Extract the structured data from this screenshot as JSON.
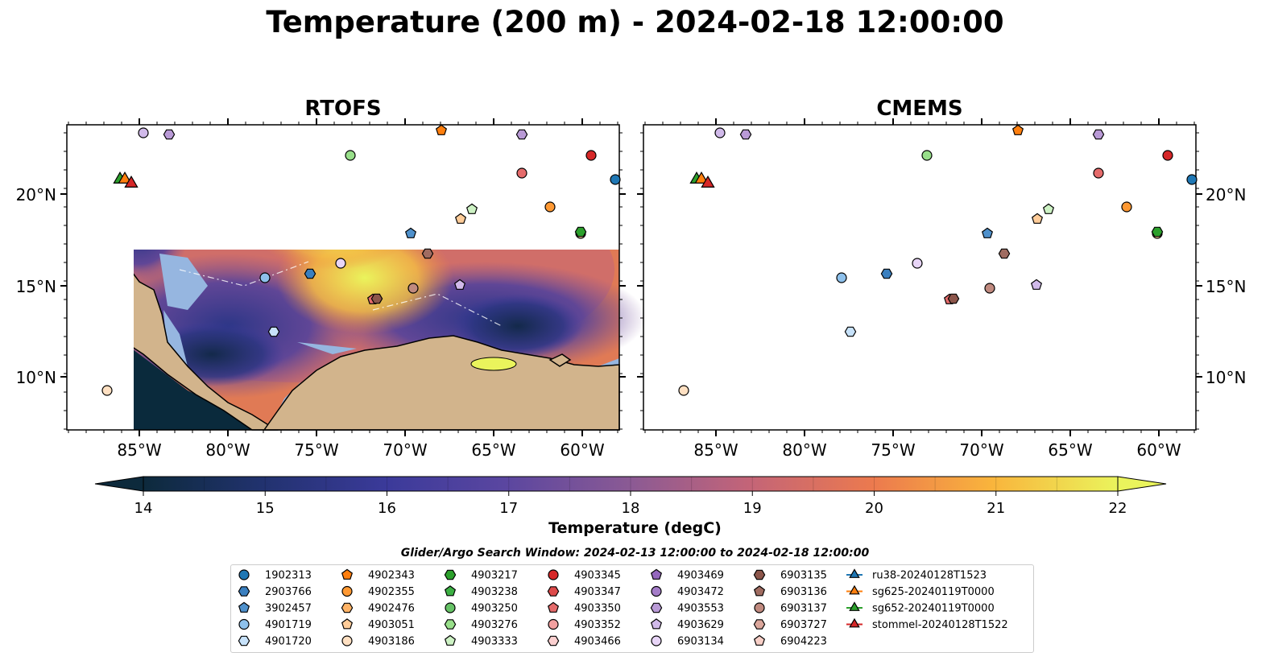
{
  "title": "Temperature (200 m) - 2024-02-18 12:00:00",
  "panels": [
    {
      "title": "RTOFS"
    },
    {
      "title": "CMEMS"
    }
  ],
  "axes": {
    "lon_ticks": [
      "85°W",
      "80°W",
      "75°W",
      "70°W",
      "65°W",
      "60°W"
    ],
    "lat_ticks": [
      "20°N",
      "15°N",
      "10°N"
    ]
  },
  "colorbar": {
    "label": "Temperature (degC)",
    "ticks": [
      "14",
      "15",
      "16",
      "17",
      "18",
      "19",
      "20",
      "21",
      "22"
    ],
    "range": [
      14,
      22
    ],
    "step": 0.5,
    "extend": "both",
    "colormap": "thermal"
  },
  "search_window": "Glider/Argo Search Window: 2024-02-13 12:00:00 to 2024-02-18 12:00:00",
  "legend": {
    "columns": [
      [
        {
          "label": "1902313",
          "marker": "circle",
          "color": "#1f77b4"
        },
        {
          "label": "2903766",
          "marker": "hexagon",
          "color": "#3a7fbf"
        },
        {
          "label": "3902457",
          "marker": "pentagon",
          "color": "#4f91cc"
        },
        {
          "label": "4901719",
          "marker": "circle",
          "color": "#8ec1ec"
        },
        {
          "label": "4901720",
          "marker": "hexagon",
          "color": "#c7e2fa"
        }
      ],
      [
        {
          "label": "4902343",
          "marker": "pentagon",
          "color": "#ff7f0e"
        },
        {
          "label": "4902355",
          "marker": "circle",
          "color": "#ff9933"
        },
        {
          "label": "4902476",
          "marker": "hexagon",
          "color": "#ffb366"
        },
        {
          "label": "4903051",
          "marker": "pentagon",
          "color": "#ffcc99"
        },
        {
          "label": "4903186",
          "marker": "circle",
          "color": "#ffe0c2"
        }
      ],
      [
        {
          "label": "4903217",
          "marker": "hexagon",
          "color": "#2ca02c"
        },
        {
          "label": "4903238",
          "marker": "pentagon",
          "color": "#3cb043"
        },
        {
          "label": "4903250",
          "marker": "circle",
          "color": "#66c266"
        },
        {
          "label": "4903276",
          "marker": "hexagon",
          "color": "#98df8a"
        },
        {
          "label": "4903333",
          "marker": "pentagon",
          "color": "#cdf2c4"
        }
      ],
      [
        {
          "label": "4903345",
          "marker": "circle",
          "color": "#d62728"
        },
        {
          "label": "4903347",
          "marker": "hexagon",
          "color": "#dd4a4a"
        },
        {
          "label": "4903350",
          "marker": "pentagon",
          "color": "#e56b6b"
        },
        {
          "label": "4903352",
          "marker": "circle",
          "color": "#f2a0a0"
        },
        {
          "label": "4903466",
          "marker": "hexagon",
          "color": "#fbd0d0"
        }
      ],
      [
        {
          "label": "4903469",
          "marker": "pentagon",
          "color": "#9467bd"
        },
        {
          "label": "4903472",
          "marker": "circle",
          "color": "#a47cc8"
        },
        {
          "label": "4903553",
          "marker": "hexagon",
          "color": "#b99ad6"
        },
        {
          "label": "4903629",
          "marker": "pentagon",
          "color": "#d1baea"
        },
        {
          "label": "6903134",
          "marker": "circle",
          "color": "#e8d5f7"
        }
      ],
      [
        {
          "label": "6903135",
          "marker": "hexagon",
          "color": "#8c564b"
        },
        {
          "label": "6903136",
          "marker": "pentagon",
          "color": "#a06c61"
        },
        {
          "label": "6903137",
          "marker": "circle",
          "color": "#c08a7f"
        },
        {
          "label": "6903727",
          "marker": "hexagon",
          "color": "#dba79c"
        },
        {
          "label": "6904223",
          "marker": "pentagon",
          "color": "#f7cfc7"
        }
      ],
      [
        {
          "label": "ru38-20240128T1523",
          "marker": "triangle",
          "color": "#1f77b4"
        },
        {
          "label": "sg625-20240119T0000",
          "marker": "triangle",
          "color": "#ff7f0e"
        },
        {
          "label": "sg652-20240119T0000",
          "marker": "triangle",
          "color": "#2ca02c"
        },
        {
          "label": "stommel-20240128T1522",
          "marker": "triangle",
          "color": "#d62728"
        }
      ]
    ]
  },
  "colors": {
    "ocean_shallow": "#96b6e0",
    "land": "#d2b48c",
    "pacific": "#0a2a3c"
  }
}
